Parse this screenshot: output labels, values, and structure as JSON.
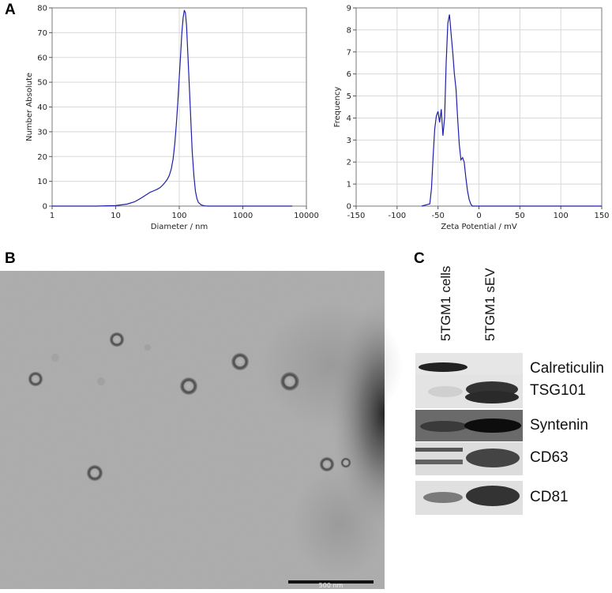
{
  "figure": {
    "panel_labels": {
      "a": "A",
      "b": "B",
      "c": "C"
    }
  },
  "chart_data": [
    {
      "type": "line",
      "panel": "A-left",
      "xlabel": "Diameter / nm",
      "ylabel": "Number Absolute",
      "x_scale": "log",
      "xlim": [
        1,
        10000
      ],
      "ylim": [
        0,
        80
      ],
      "x_ticks": [
        "1",
        "10",
        "100",
        "1000",
        "10000"
      ],
      "y_ticks": [
        "0",
        "10",
        "20",
        "30",
        "40",
        "50",
        "60",
        "70",
        "80"
      ],
      "grid": true,
      "series": [
        {
          "color": "#1f1fa8",
          "x": [
            1,
            5,
            10,
            15,
            20,
            25,
            30,
            35,
            40,
            45,
            50,
            55,
            60,
            65,
            70,
            75,
            80,
            85,
            90,
            95,
            100,
            105,
            110,
            115,
            120,
            125,
            130,
            135,
            140,
            150,
            160,
            170,
            180,
            190,
            200,
            220,
            250,
            280,
            300,
            400,
            1000,
            6000
          ],
          "y": [
            0,
            0,
            0.2,
            0.8,
            1.8,
            3.2,
            4.5,
            5.6,
            6.2,
            6.8,
            7.5,
            8.5,
            9.6,
            10.8,
            12.5,
            15,
            19,
            25,
            33,
            42,
            52,
            61,
            70,
            76,
            79,
            78,
            73,
            64,
            55,
            38,
            22,
            12,
            6,
            3,
            1.5,
            0.5,
            0.1,
            0,
            0,
            0,
            0,
            0
          ]
        }
      ]
    },
    {
      "type": "line",
      "panel": "A-right",
      "xlabel": "Zeta Potential / mV",
      "ylabel": "Frequency",
      "xlim": [
        -150,
        150
      ],
      "ylim": [
        0,
        9
      ],
      "x_ticks": [
        "-150",
        "-100",
        "-50",
        "0",
        "50",
        "100",
        "150"
      ],
      "y_ticks": [
        "0",
        "1",
        "2",
        "3",
        "4",
        "5",
        "6",
        "7",
        "8",
        "9"
      ],
      "grid": true,
      "series": [
        {
          "color": "#1f1fa8",
          "x": [
            -70,
            -60,
            -58,
            -56,
            -54,
            -52,
            -50,
            -48,
            -46,
            -44,
            -42,
            -40,
            -38,
            -36,
            -34,
            -32,
            -30,
            -28,
            -26,
            -24,
            -22,
            -20,
            -18,
            -16,
            -14,
            -12,
            -10,
            -8,
            0,
            50,
            150
          ],
          "y": [
            0,
            0.1,
            0.8,
            2.2,
            3.5,
            4.1,
            4.3,
            3.8,
            4.4,
            3.2,
            4.0,
            6.5,
            8.3,
            8.7,
            7.8,
            7.0,
            6.0,
            5.3,
            4.0,
            2.8,
            2.1,
            2.2,
            2.0,
            1.3,
            0.7,
            0.3,
            0.1,
            0,
            0,
            0,
            0
          ]
        }
      ]
    }
  ],
  "tem": {
    "scale_bar_label": "500 nm"
  },
  "western_blot": {
    "lanes": [
      "5TGM1 cells",
      "5TGM1 sEV"
    ],
    "proteins": [
      "Calreticulin",
      "TSG101",
      "Syntenin",
      "CD63",
      "CD81"
    ]
  }
}
